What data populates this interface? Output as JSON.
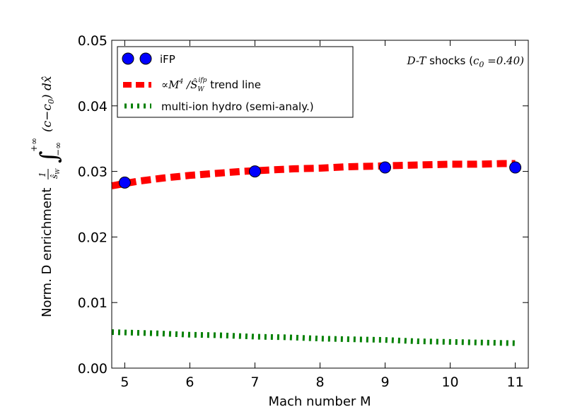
{
  "chart_data": {
    "type": "line",
    "title": "",
    "annotation": {
      "prefix": "D-T",
      "mid": " shocks (",
      "var": "c",
      "sub": "0",
      "eq": " =0.40)"
    },
    "xlabel": "Mach number M",
    "ylabel": {
      "text": "Norm. D enrichment",
      "frac_num": "1",
      "frac_den": "ŝ",
      "frac_den_sub": "W",
      "integral": "∫",
      "upper": "+∞",
      "lower": "−∞",
      "integrand": "(c−c",
      "integrand_sub": "0",
      "integrand_end": ") dx̂"
    },
    "xlim": [
      4.8,
      11.2
    ],
    "ylim": [
      0.0,
      0.05
    ],
    "xticks": [
      5,
      6,
      7,
      8,
      9,
      10,
      11
    ],
    "yticks": [
      0.0,
      0.01,
      0.02,
      0.03,
      0.04,
      0.05
    ],
    "ytick_labels": [
      "0.00",
      "0.01",
      "0.02",
      "0.03",
      "0.04",
      "0.05"
    ],
    "xtick_labels": [
      "5",
      "6",
      "7",
      "8",
      "9",
      "10",
      "11"
    ],
    "series": [
      {
        "name": "iFP",
        "style": "markers",
        "color": "#0000ff",
        "x": [
          5,
          7,
          9,
          11
        ],
        "y": [
          0.0283,
          0.03,
          0.0306,
          0.0306
        ]
      },
      {
        "name": "trend",
        "style": "dashed",
        "color": "#ff0000",
        "x": [
          4.8,
          5.2,
          5.6,
          6.0,
          6.4,
          6.8,
          7.2,
          7.6,
          8.0,
          8.4,
          8.8,
          9.2,
          9.6,
          10.0,
          10.4,
          10.8,
          11.0
        ],
        "y": [
          0.0278,
          0.0285,
          0.029,
          0.0294,
          0.0297,
          0.03,
          0.0302,
          0.0304,
          0.0305,
          0.0307,
          0.0308,
          0.0309,
          0.031,
          0.0311,
          0.0311,
          0.0312,
          0.0312
        ]
      },
      {
        "name": "multi-ion hydro (semi-analy.)",
        "style": "dashed",
        "color": "#008000",
        "x": [
          4.8,
          5.5,
          6.0,
          6.5,
          7.0,
          7.5,
          8.0,
          8.5,
          9.0,
          9.5,
          10.0,
          10.5,
          11.0
        ],
        "y": [
          0.0055,
          0.0053,
          0.0051,
          0.005,
          0.0048,
          0.0047,
          0.0045,
          0.0044,
          0.0043,
          0.0041,
          0.004,
          0.0039,
          0.0038
        ]
      }
    ],
    "legend": {
      "placement": "top-left",
      "entries": [
        {
          "label": "iFP"
        },
        {
          "math_prefix": "∝M",
          "exp": "4",
          "slash": " /Ŝ",
          "sub": "W",
          "sup": "ifp",
          "label": " trend line"
        },
        {
          "label": "multi-ion hydro (semi-analy.)"
        }
      ]
    }
  }
}
